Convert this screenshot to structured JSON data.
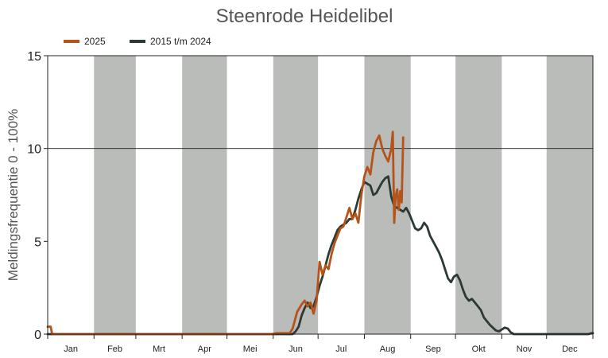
{
  "chart_data": {
    "type": "line",
    "title": "Steenrode Heidelibel",
    "xlabel": "",
    "ylabel": "Meldingsfrequentie 0 - 100%",
    "xlim": [
      0,
      365
    ],
    "ylim": [
      0,
      15
    ],
    "yticks": [
      0,
      5,
      10,
      15
    ],
    "gridlines_y": [
      10
    ],
    "months": [
      "Jan",
      "Feb",
      "Mrt",
      "Apr",
      "Mei",
      "Jun",
      "Jul",
      "Aug",
      "Sep",
      "Okt",
      "Nov",
      "Dec"
    ],
    "month_days": [
      31,
      28,
      31,
      30,
      31,
      30,
      31,
      31,
      30,
      31,
      30,
      31
    ],
    "shaded_months": [
      1,
      3,
      5,
      7,
      9,
      11
    ],
    "colors": {
      "shade": "#b9bcb8",
      "series_2025": "#b5541a",
      "series_hist": "#2c3a34"
    },
    "legend": {
      "position": "top-left"
    },
    "series": [
      {
        "name": "2025",
        "color": "#b5541a",
        "points": [
          [
            0,
            0.4
          ],
          [
            2,
            0.4
          ],
          [
            3,
            0
          ],
          [
            150,
            0
          ],
          [
            153,
            0.05
          ],
          [
            162,
            0.05
          ],
          [
            164,
            0.3
          ],
          [
            167,
            1.2
          ],
          [
            170,
            1.6
          ],
          [
            172,
            1.8
          ],
          [
            174,
            1.5
          ],
          [
            176,
            1.7
          ],
          [
            178,
            1.1
          ],
          [
            180,
            1.8
          ],
          [
            182,
            3.9
          ],
          [
            184,
            3.2
          ],
          [
            186,
            3.7
          ],
          [
            188,
            3.5
          ],
          [
            190,
            4.3
          ],
          [
            192,
            4.9
          ],
          [
            194,
            5.3
          ],
          [
            196,
            5.7
          ],
          [
            198,
            5.8
          ],
          [
            200,
            6.3
          ],
          [
            202,
            6.8
          ],
          [
            204,
            6.2
          ],
          [
            206,
            6.5
          ],
          [
            208,
            6.0
          ],
          [
            210,
            7.5
          ],
          [
            212,
            8.5
          ],
          [
            214,
            9.0
          ],
          [
            216,
            8.6
          ],
          [
            218,
            9.8
          ],
          [
            220,
            10.4
          ],
          [
            222,
            10.7
          ],
          [
            224,
            10.0
          ],
          [
            226,
            9.6
          ],
          [
            228,
            9.3
          ],
          [
            230,
            10.0
          ],
          [
            231,
            10.9
          ],
          [
            232,
            6.0
          ],
          [
            233,
            7.5
          ],
          [
            234,
            7.8
          ],
          [
            235,
            6.7
          ],
          [
            236,
            7.7
          ],
          [
            237,
            7.1
          ],
          [
            238,
            10.6
          ]
        ]
      },
      {
        "name": "2015 t/m 2024",
        "color": "#2c3a34",
        "points": [
          [
            0,
            0
          ],
          [
            164,
            0
          ],
          [
            166,
            0.15
          ],
          [
            168,
            0.4
          ],
          [
            170,
            1.0
          ],
          [
            172,
            1.4
          ],
          [
            174,
            1.7
          ],
          [
            176,
            1.4
          ],
          [
            178,
            1.5
          ],
          [
            180,
            2.0
          ],
          [
            182,
            2.6
          ],
          [
            184,
            3.1
          ],
          [
            186,
            3.7
          ],
          [
            188,
            4.3
          ],
          [
            190,
            4.8
          ],
          [
            192,
            5.2
          ],
          [
            194,
            5.6
          ],
          [
            196,
            5.8
          ],
          [
            198,
            5.9
          ],
          [
            200,
            6.0
          ],
          [
            202,
            6.2
          ],
          [
            204,
            6.2
          ],
          [
            206,
            6.7
          ],
          [
            208,
            7.3
          ],
          [
            210,
            7.8
          ],
          [
            212,
            8.2
          ],
          [
            214,
            8.1
          ],
          [
            216,
            8.0
          ],
          [
            218,
            7.5
          ],
          [
            220,
            7.6
          ],
          [
            222,
            7.9
          ],
          [
            224,
            8.2
          ],
          [
            226,
            8.4
          ],
          [
            228,
            8.5
          ],
          [
            230,
            7.4
          ],
          [
            232,
            6.9
          ],
          [
            234,
            6.8
          ],
          [
            236,
            6.7
          ],
          [
            238,
            6.6
          ],
          [
            240,
            6.8
          ],
          [
            242,
            6.5
          ],
          [
            244,
            6.1
          ],
          [
            246,
            5.7
          ],
          [
            248,
            5.6
          ],
          [
            250,
            5.7
          ],
          [
            252,
            6.0
          ],
          [
            254,
            5.8
          ],
          [
            256,
            5.3
          ],
          [
            258,
            5.0
          ],
          [
            260,
            4.7
          ],
          [
            262,
            4.4
          ],
          [
            264,
            4.0
          ],
          [
            266,
            3.5
          ],
          [
            268,
            3.0
          ],
          [
            270,
            2.8
          ],
          [
            272,
            3.1
          ],
          [
            274,
            3.2
          ],
          [
            276,
            2.9
          ],
          [
            278,
            2.4
          ],
          [
            280,
            2.0
          ],
          [
            282,
            1.8
          ],
          [
            284,
            1.9
          ],
          [
            286,
            1.7
          ],
          [
            288,
            1.5
          ],
          [
            290,
            1.3
          ],
          [
            292,
            0.9
          ],
          [
            294,
            0.7
          ],
          [
            296,
            0.5
          ],
          [
            298,
            0.35
          ],
          [
            300,
            0.2
          ],
          [
            302,
            0.15
          ],
          [
            304,
            0.25
          ],
          [
            306,
            0.35
          ],
          [
            308,
            0.3
          ],
          [
            310,
            0.1
          ],
          [
            312,
            0
          ],
          [
            362,
            0
          ],
          [
            364,
            0.05
          ],
          [
            365,
            0.05
          ]
        ]
      }
    ]
  }
}
